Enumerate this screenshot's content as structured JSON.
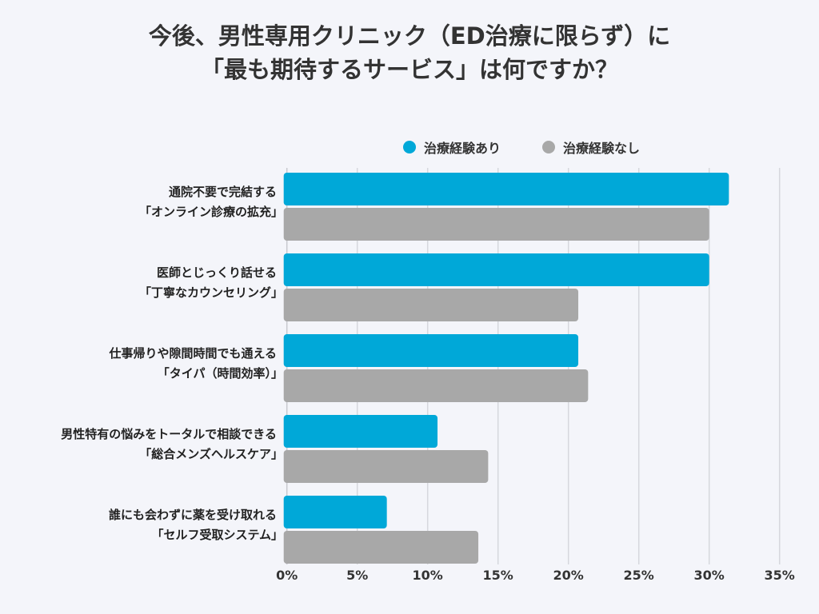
{
  "title_lines": [
    "今後、男性専用クリニック（ED治療に限らず）に",
    "「最も期待するサービス」は何ですか？"
  ],
  "chart_data": {
    "type": "bar",
    "orientation": "horizontal",
    "categories": [
      [
        "通院不要で完結する",
        "「オンライン診療の拡充」"
      ],
      [
        "医師とじっくり話せる",
        "「丁寧なカウンセリング」"
      ],
      [
        "仕事帰りや隙間時間でも通える",
        "「タイパ（時間効率）」"
      ],
      [
        "男性特有の悩みをトータルで相談できる",
        "「総合メンズヘルスケア」"
      ],
      [
        "誰にも会わずに薬を受け取れる",
        "「セルフ受取システム」"
      ]
    ],
    "series": [
      {
        "name": "治療経験あり",
        "color": "#00a8d8",
        "values": [
          31.4,
          30.0,
          20.7,
          10.7,
          7.1
        ]
      },
      {
        "name": "治療経験なし",
        "color": "#a8a8a8",
        "values": [
          30.0,
          20.7,
          21.4,
          14.3,
          13.6
        ]
      }
    ],
    "xlim": [
      0,
      35
    ],
    "xticks": [
      "0%",
      "5%",
      "10%",
      "15%",
      "20%",
      "25%",
      "30%",
      "35%"
    ],
    "grid": true,
    "legend_position": "top"
  }
}
